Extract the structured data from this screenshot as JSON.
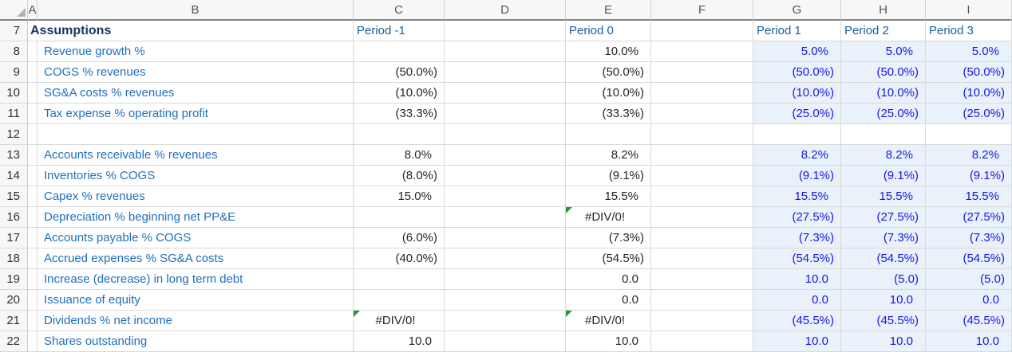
{
  "columns": [
    "A",
    "B",
    "C",
    "D",
    "E",
    "F",
    "G",
    "H",
    "I"
  ],
  "colors": {
    "grid_line": "#d9d9d9",
    "header_strip_bg": "#f7f7f7",
    "header_strip_border": "#848484",
    "header_strip_text": "#555555",
    "row_number_text": "#303030",
    "section_title": "#17365d",
    "row_label": "#1f6fbd",
    "period_header": "#1b5e9c",
    "value_text": "#262626",
    "projection_value_text": "#1a16e8",
    "projection_fill": "#e9f2fb",
    "error_indicator": "#2b9348"
  },
  "sheet": {
    "error_value": "#DIV/0!",
    "header_row": {
      "num": 7,
      "title": "Assumptions",
      "c": "Period -1",
      "e": "Period 0",
      "g": "Period 1",
      "h": "Period 2",
      "i": "Period 3"
    },
    "rows": [
      {
        "num": 8,
        "label": "Revenue growth %",
        "c": "",
        "e": "10.0%",
        "g": "5.0%",
        "h": "5.0%",
        "i": "5.0%",
        "shaded": true
      },
      {
        "num": 9,
        "label": "COGS % revenues",
        "c": "(50.0%)",
        "e": "(50.0%)",
        "g": "(50.0%)",
        "h": "(50.0%)",
        "i": "(50.0%)",
        "shaded": true
      },
      {
        "num": 10,
        "label": "SG&A costs % revenues",
        "c": "(10.0%)",
        "e": "(10.0%)",
        "g": "(10.0%)",
        "h": "(10.0%)",
        "i": "(10.0%)",
        "shaded": true
      },
      {
        "num": 11,
        "label": "Tax expense % operating profit",
        "c": "(33.3%)",
        "e": "(33.3%)",
        "g": "(25.0%)",
        "h": "(25.0%)",
        "i": "(25.0%)",
        "shaded": true
      },
      {
        "num": 12,
        "label": "",
        "c": "",
        "e": "",
        "g": "",
        "h": "",
        "i": "",
        "shaded": false
      },
      {
        "num": 13,
        "label": "Accounts receivable % revenues",
        "c": "8.0%",
        "e": "8.2%",
        "g": "8.2%",
        "h": "8.2%",
        "i": "8.2%",
        "shaded": true
      },
      {
        "num": 14,
        "label": "Inventories % COGS",
        "c": "(8.0%)",
        "e": "(9.1%)",
        "g": "(9.1%)",
        "h": "(9.1%)",
        "i": "(9.1%)",
        "shaded": true
      },
      {
        "num": 15,
        "label": "Capex % revenues",
        "c": "15.0%",
        "e": "15.5%",
        "g": "15.5%",
        "h": "15.5%",
        "i": "15.5%",
        "shaded": true
      },
      {
        "num": 16,
        "label": "Depreciation % beginning net PP&E",
        "c": "",
        "e": "#DIV/0!",
        "g": "(27.5%)",
        "h": "(27.5%)",
        "i": "(27.5%)",
        "shaded": true
      },
      {
        "num": 17,
        "label": "Accounts payable % COGS",
        "c": "(6.0%)",
        "e": "(7.3%)",
        "g": "(7.3%)",
        "h": "(7.3%)",
        "i": "(7.3%)",
        "shaded": true
      },
      {
        "num": 18,
        "label": "Accrued expenses % SG&A costs",
        "c": "(40.0%)",
        "e": "(54.5%)",
        "g": "(54.5%)",
        "h": "(54.5%)",
        "i": "(54.5%)",
        "shaded": true
      },
      {
        "num": 19,
        "label": "Increase (decrease) in long term debt",
        "c": "",
        "e": "0.0",
        "g": "10.0",
        "h": "(5.0)",
        "i": "(5.0)",
        "shaded": true
      },
      {
        "num": 20,
        "label": "Issuance of equity",
        "c": "",
        "e": "0.0",
        "g": "0.0",
        "h": "10.0",
        "i": "0.0",
        "shaded": true
      },
      {
        "num": 21,
        "label": "Dividends % net income",
        "c": "#DIV/0!",
        "e": "#DIV/0!",
        "g": "(45.5%)",
        "h": "(45.5%)",
        "i": "(45.5%)",
        "shaded": true
      },
      {
        "num": 22,
        "label": "Shares outstanding",
        "c": "10.0",
        "e": "10.0",
        "g": "10.0",
        "h": "10.0",
        "i": "10.0",
        "shaded": true
      }
    ]
  }
}
